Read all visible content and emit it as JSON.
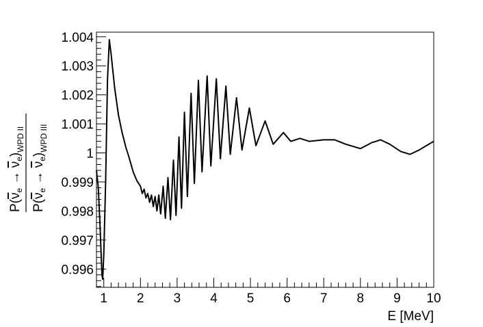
{
  "chart_data": {
    "type": "line",
    "xlabel": "E [MeV]",
    "ylabel": {
      "numerator_prefix": "P(",
      "numerator_nu1": "ν",
      "numerator_sub1": "e",
      "numerator_arrow": " → ",
      "numerator_nu2": "ν",
      "numerator_sub2": "e",
      "numerator_suffix": ")",
      "numerator_subscript": "WPD II",
      "denominator_prefix": "P(",
      "denominator_nu1": "ν",
      "denominator_sub1": "e",
      "denominator_arrow": " → ",
      "denominator_nu2": "ν",
      "denominator_sub2": "e",
      "denominator_suffix": ")",
      "denominator_subscript": "WPD III"
    },
    "xlim": [
      0.8,
      10
    ],
    "ylim": [
      0.99537,
      1.00416
    ],
    "x_ticks": [
      1,
      2,
      3,
      4,
      5,
      6,
      7,
      8,
      9,
      10
    ],
    "x_tick_labels": [
      "1",
      "2",
      "3",
      "4",
      "5",
      "6",
      "7",
      "8",
      "9",
      "10"
    ],
    "y_ticks": [
      0.996,
      0.997,
      0.998,
      0.999,
      1.0,
      1.001,
      1.002,
      1.003,
      1.004
    ],
    "y_tick_labels": [
      "0.996",
      "0.997",
      "0.998",
      "0.999",
      "1",
      "1.001",
      "1.002",
      "1.003",
      "1.004"
    ],
    "series_color": "#000000",
    "grid": false,
    "series": [
      {
        "points": [
          [
            0.8,
            0.9994
          ],
          [
            0.85,
            0.9988
          ],
          [
            0.9,
            0.9974
          ],
          [
            0.95,
            0.9958
          ],
          [
            0.97,
            0.99565
          ],
          [
            1.0,
            0.9965
          ],
          [
            1.05,
            0.999
          ],
          [
            1.1,
            1.0025
          ],
          [
            1.15,
            1.0039
          ],
          [
            1.2,
            1.0034
          ],
          [
            1.3,
            1.0022
          ],
          [
            1.4,
            1.0013
          ],
          [
            1.5,
            1.0007
          ],
          [
            1.6,
            1.0002
          ],
          [
            1.7,
            0.9998
          ],
          [
            1.8,
            0.99935
          ],
          [
            1.9,
            0.99905
          ],
          [
            2.0,
            0.99885
          ],
          [
            2.05,
            0.9986
          ],
          [
            2.1,
            0.99875
          ],
          [
            2.15,
            0.99845
          ],
          [
            2.2,
            0.9986
          ],
          [
            2.25,
            0.9983
          ],
          [
            2.3,
            0.99855
          ],
          [
            2.35,
            0.99815
          ],
          [
            2.4,
            0.9985
          ],
          [
            2.45,
            0.998
          ],
          [
            2.5,
            0.99855
          ],
          [
            2.55,
            0.9979
          ],
          [
            2.62,
            0.99885
          ],
          [
            2.68,
            0.99775
          ],
          [
            2.75,
            0.99915
          ],
          [
            2.82,
            0.9977
          ],
          [
            2.9,
            0.99975
          ],
          [
            2.97,
            0.99785
          ],
          [
            3.05,
            1.00055
          ],
          [
            3.12,
            0.9981
          ],
          [
            3.2,
            1.0014
          ],
          [
            3.28,
            0.9985
          ],
          [
            3.38,
            1.00205
          ],
          [
            3.47,
            0.99895
          ],
          [
            3.58,
            1.0025
          ],
          [
            3.68,
            0.99935
          ],
          [
            3.82,
            1.00265
          ],
          [
            3.92,
            0.99955
          ],
          [
            4.07,
            1.00255
          ],
          [
            4.18,
            0.9998
          ],
          [
            4.33,
            1.0023
          ],
          [
            4.45,
            0.99995
          ],
          [
            4.62,
            1.0019
          ],
          [
            4.77,
            1.0001
          ],
          [
            4.97,
            1.00155
          ],
          [
            5.15,
            1.00025
          ],
          [
            5.4,
            1.0011
          ],
          [
            5.62,
            1.0003
          ],
          [
            5.9,
            1.0007
          ],
          [
            6.1,
            1.0004
          ],
          [
            6.35,
            1.0005
          ],
          [
            6.6,
            1.0004
          ],
          [
            7.0,
            1.00045
          ],
          [
            7.3,
            1.00045
          ],
          [
            7.6,
            1.0003
          ],
          [
            8.0,
            1.00015
          ],
          [
            8.3,
            1.00035
          ],
          [
            8.55,
            1.00045
          ],
          [
            8.8,
            1.0003
          ],
          [
            9.1,
            1.00005
          ],
          [
            9.35,
            0.99995
          ],
          [
            9.6,
            1.0001
          ],
          [
            9.8,
            1.00025
          ],
          [
            10.0,
            1.0004
          ]
        ]
      }
    ]
  }
}
